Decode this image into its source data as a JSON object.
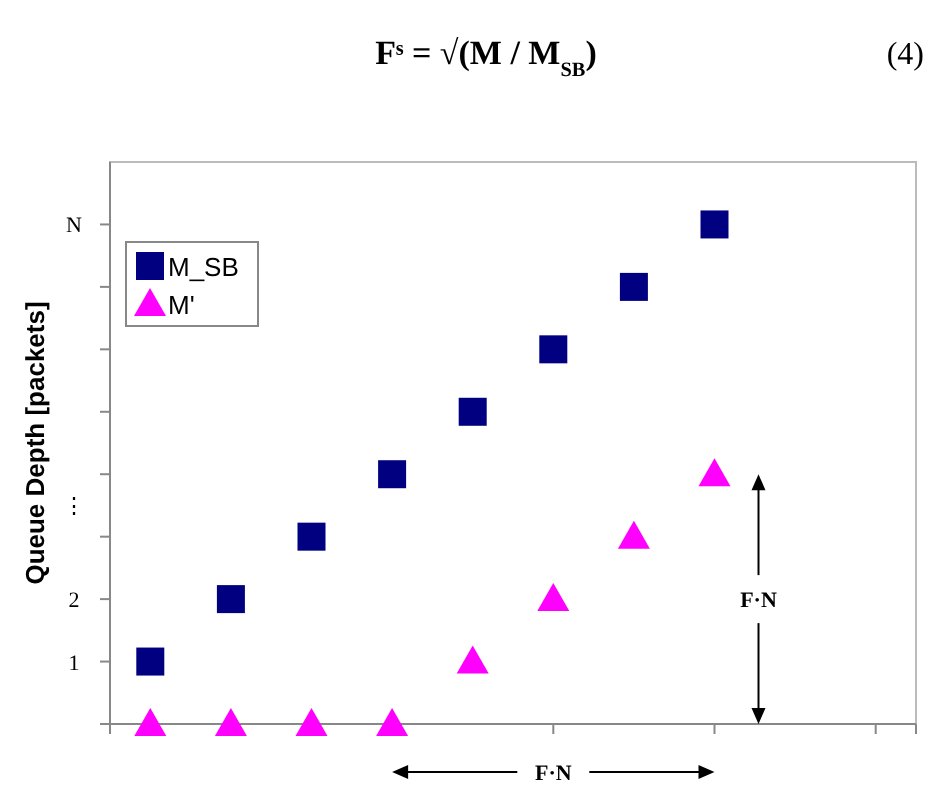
{
  "chart_data": {
    "type": "scatter",
    "title": "Fˢ = √(M / M$_{SB}$)",
    "annotations": [
      "(4)",
      "F·N",
      "F·N"
    ],
    "ylabel": "Queue Depth [packets]",
    "categories": [
      null,
      null,
      null,
      null,
      null,
      null,
      null,
      null,
      null,
      null
    ],
    "ylim": [
      0,
      9
    ],
    "yticks": [
      {
        "value": 0,
        "label": null
      },
      {
        "value": 1,
        "label": "1"
      },
      {
        "value": 2,
        "label": "2"
      },
      {
        "value": 3,
        "label": null
      },
      {
        "value": 3.5,
        "label": "⋮"
      },
      {
        "value": 4,
        "label": null
      },
      {
        "value": 5,
        "label": null
      },
      {
        "value": 6,
        "label": null
      },
      {
        "value": 7,
        "label": null
      },
      {
        "value": 8,
        "label": "N"
      }
    ],
    "series": [
      {
        "name": "M_SB",
        "color": "#000080",
        "marker": "square",
        "values": [
          1,
          2,
          3,
          4,
          5,
          6,
          7,
          8,
          null,
          null
        ]
      },
      {
        "name": "M'",
        "color": "#ff00ff",
        "marker": "triangle",
        "values": [
          0,
          0,
          0,
          0,
          1,
          2,
          3,
          4,
          null,
          null
        ]
      }
    ],
    "grid": false,
    "legend": "top left"
  }
}
